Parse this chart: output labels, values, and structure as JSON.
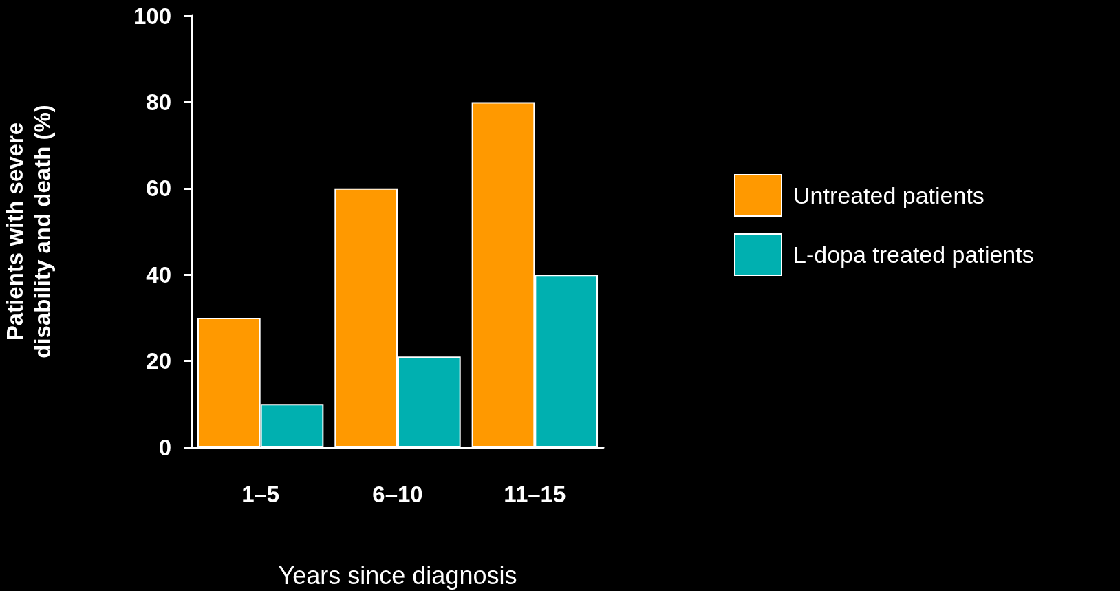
{
  "chart_data": {
    "type": "bar",
    "xlabel": "Years since diagnosis",
    "ylabel": "Patients with severe\ndisability and death (%)",
    "categories": [
      "1–5",
      "6–10",
      "11–15"
    ],
    "series": [
      {
        "name": "Untreated patients",
        "color": "#ff9900",
        "values": [
          30,
          60,
          80
        ]
      },
      {
        "name": "L-dopa treated patients",
        "color": "#00b0b0",
        "values": [
          10,
          21,
          40
        ]
      }
    ],
    "ylim": [
      0,
      100
    ],
    "yticks": [
      0,
      20,
      40,
      60,
      80,
      100
    ],
    "grid": false,
    "legend": "right"
  }
}
